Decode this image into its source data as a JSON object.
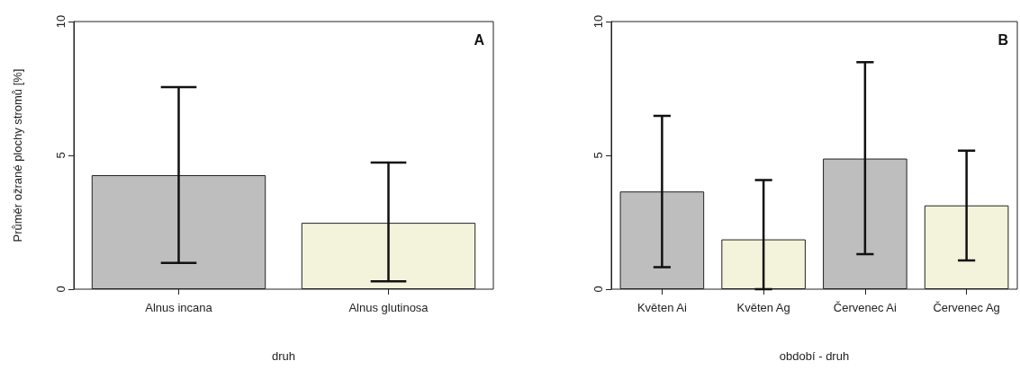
{
  "chart_data": [
    {
      "type": "bar",
      "ylabel": "Průměr ožrané plochy stromů [%]",
      "xlabel": "druh",
      "annotations": [
        "A"
      ],
      "categories": [
        "Alnus incana",
        "Alnus glutinosa"
      ],
      "values": [
        4.26,
        2.48
      ],
      "colors": [
        "#bebebe",
        "#f3f3dc"
      ],
      "errors": [
        [
          0.98,
          7.55
        ],
        [
          0.29,
          4.73
        ]
      ],
      "ylim": [
        0,
        10
      ],
      "yticks": [
        0,
        5,
        10
      ],
      "grid": false
    },
    {
      "type": "bar",
      "xlabel": "období - druh",
      "annotations": [
        "B"
      ],
      "categories": [
        "Květen Ai",
        "Květen Ag",
        "Červenec Ai",
        "Červenec Ag"
      ],
      "values": [
        3.65,
        1.86,
        4.88,
        3.13
      ],
      "colors": [
        "#bebebe",
        "#f3f3dc",
        "#bebebe",
        "#f3f3dc"
      ],
      "errors": [
        [
          0.82,
          6.48
        ],
        [
          0,
          4.08
        ],
        [
          1.31,
          8.48
        ],
        [
          1.07,
          5.18
        ]
      ],
      "ylim": [
        0,
        10
      ],
      "yticks": [
        0,
        5,
        10
      ],
      "grid": false
    }
  ]
}
